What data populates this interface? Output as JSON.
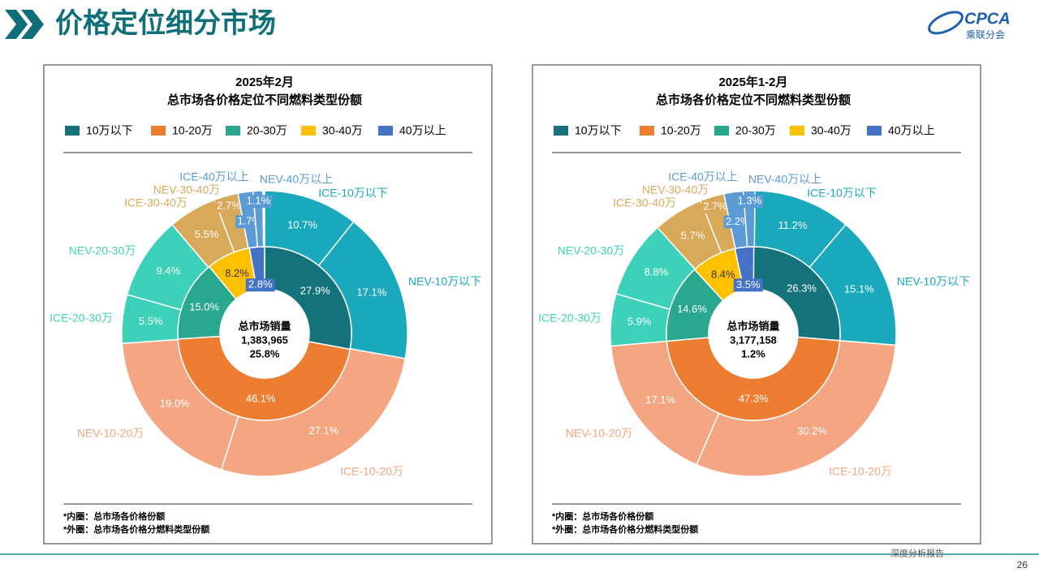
{
  "header": {
    "title": "价格定位细分市场",
    "logo": "CPCA",
    "logo_sub": "乘联分会"
  },
  "footer": {
    "text": "深度分析报告",
    "page": 26
  },
  "chart_data": [
    {
      "type": "donut",
      "title": "2025年2月",
      "subtitle": "总市场各价格定位不同燃料类型份额",
      "categories": [
        "10万以下",
        "10-20万",
        "20-30万",
        "30-40万",
        "40万以上"
      ],
      "colors": [
        "#14737a",
        "#ed7d31",
        "#2aa88f",
        "#ffc000",
        "#4472c4"
      ],
      "values": [
        27.9,
        46.1,
        15.0,
        8.2,
        2.8
      ],
      "value_labels": [
        "27.9%",
        "46.1%",
        "15.0%",
        "8.2%",
        "2.8%"
      ],
      "outer": {
        "categories": [
          "ICE-10万以下",
          "NEV-10万以下",
          "ICE-10-20万",
          "NEV-10-20万",
          "ICE-20-30万",
          "NEV-20-30万",
          "ICE-30-40万",
          "NEV-30-40万",
          "ICE-40万以上",
          "NEV-40万以上"
        ],
        "colors": [
          "#1aa9bc",
          "#1aa9bc",
          "#f4a582",
          "#f4a582",
          "#3cd1b8",
          "#3cd1b8",
          "#d9a95a",
          "#d9a95a",
          "#5b9bd5",
          "#5b9bd5"
        ],
        "values": [
          10.7,
          17.1,
          27.1,
          19.0,
          5.5,
          9.4,
          5.5,
          2.7,
          1.7,
          1.1
        ],
        "value_labels": [
          "10.7%",
          "17.1%",
          "27.1%",
          "19.0%",
          "5.5%",
          "9.4%",
          "5.5%",
          "2.7%",
          "1.7%",
          "1.1%"
        ]
      },
      "center": [
        "总市场销量",
        "1,383,965",
        "25.8%"
      ],
      "notes": [
        "*内圈：总市场各价格份额",
        "*外圈：总市场各价格分燃料类型份额"
      ]
    },
    {
      "type": "donut",
      "title": "2025年1-2月",
      "subtitle": "总市场各价格定位不同燃料类型份额",
      "categories": [
        "10万以下",
        "10-20万",
        "20-30万",
        "30-40万",
        "40万以上"
      ],
      "colors": [
        "#14737a",
        "#ed7d31",
        "#2aa88f",
        "#ffc000",
        "#4472c4"
      ],
      "values": [
        26.3,
        47.3,
        14.6,
        8.4,
        3.5
      ],
      "value_labels": [
        "26.3%",
        "47.3%",
        "14.6%",
        "8.4%",
        "3.5%"
      ],
      "outer": {
        "categories": [
          "ICE-10万以下",
          "NEV-10万以下",
          "ICE-10-20万",
          "NEV-10-20万",
          "ICE-20-30万",
          "NEV-20-30万",
          "ICE-30-40万",
          "NEV-30-40万",
          "ICE-40万以上",
          "NEV-40万以上"
        ],
        "colors": [
          "#1aa9bc",
          "#1aa9bc",
          "#f4a582",
          "#f4a582",
          "#3cd1b8",
          "#3cd1b8",
          "#d9a95a",
          "#d9a95a",
          "#5b9bd5",
          "#5b9bd5"
        ],
        "values": [
          11.2,
          15.1,
          30.2,
          17.1,
          5.9,
          8.8,
          5.7,
          2.7,
          2.2,
          1.3
        ],
        "value_labels": [
          "11.2%",
          "15.1%",
          "30.2%",
          "17.1%",
          "5.9%",
          "8.8%",
          "5.7%",
          "2.7%",
          "2.2%",
          "1.3%"
        ]
      },
      "center": [
        "总市场销量",
        "3,177,158",
        "1.2%"
      ],
      "notes": [
        "*内圈：总市场各价格份额",
        "*外圈：总市场各价格分燃料类型份额"
      ]
    }
  ]
}
